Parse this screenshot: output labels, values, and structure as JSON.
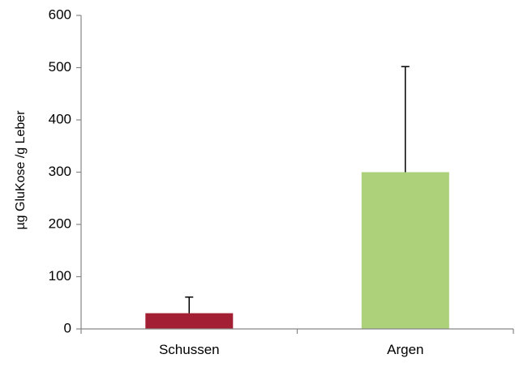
{
  "chart_data": {
    "type": "bar",
    "title": "",
    "xlabel": "",
    "ylabel": "µg GluKose /g Leber",
    "categories": [
      "Schussen",
      "Argen"
    ],
    "values": [
      30,
      300
    ],
    "error_upper": [
      61,
      502
    ],
    "ylim": [
      0,
      600
    ],
    "yticks": [
      0,
      100,
      200,
      300,
      400,
      500,
      600
    ],
    "ytick_labels": [
      "0",
      "100",
      "200",
      "300",
      "400",
      "500",
      "600"
    ],
    "bar_colors": [
      "#a31f34",
      "#acd17a"
    ],
    "axis_color": "#868686",
    "error_bar_color": "#000000",
    "grid": false,
    "legend": "none"
  }
}
